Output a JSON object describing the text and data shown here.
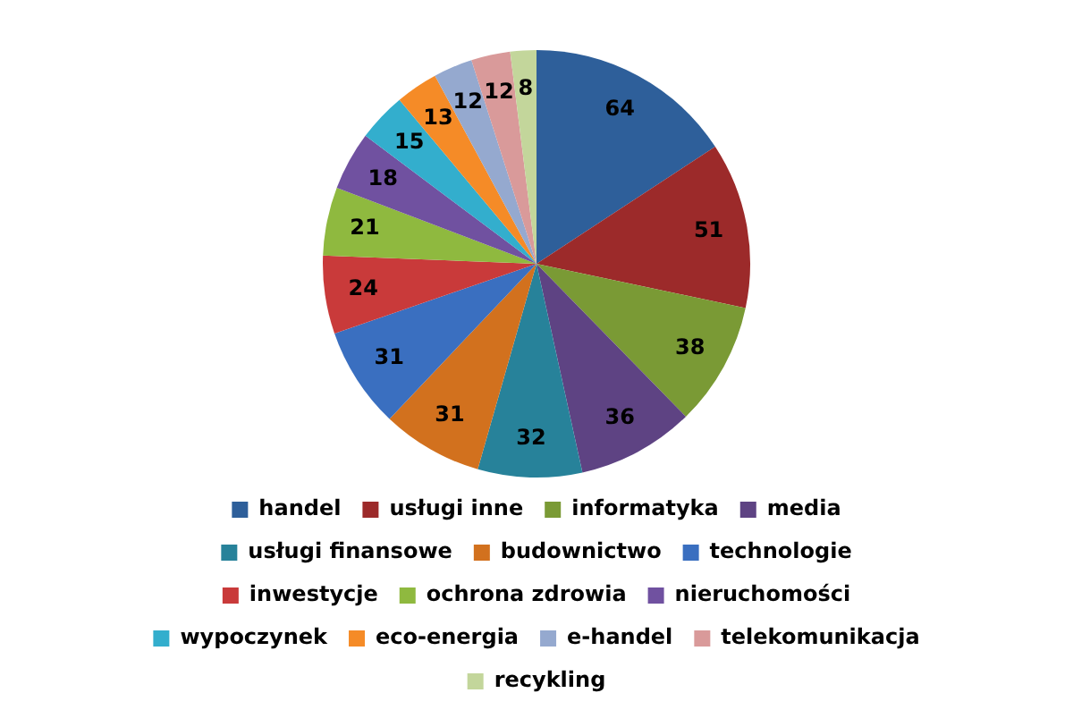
{
  "chart_data": {
    "type": "pie",
    "categories": [
      "handel",
      "usługi inne",
      "informatyka",
      "media",
      "usługi finansowe",
      "budownictwo",
      "technologie",
      "inwestycje",
      "ochrona zdrowia",
      "nieruchomości",
      "wypoczynek",
      "eco-energia",
      "e-handel",
      "telekomunikacja",
      "recykling"
    ],
    "values": [
      64,
      51,
      38,
      36,
      32,
      31,
      31,
      24,
      21,
      18,
      15,
      13,
      12,
      12,
      8
    ],
    "colors": [
      "#2e5f9a",
      "#9c2a2a",
      "#7a9a35",
      "#5e4383",
      "#27829a",
      "#d2711e",
      "#3a6fc0",
      "#c93a3a",
      "#8fb93f",
      "#7051a0",
      "#33aecd",
      "#f58b27",
      "#95a9cf",
      "#d99a9a",
      "#c3d69b"
    ],
    "data_labels": true,
    "legend": "bottom"
  }
}
